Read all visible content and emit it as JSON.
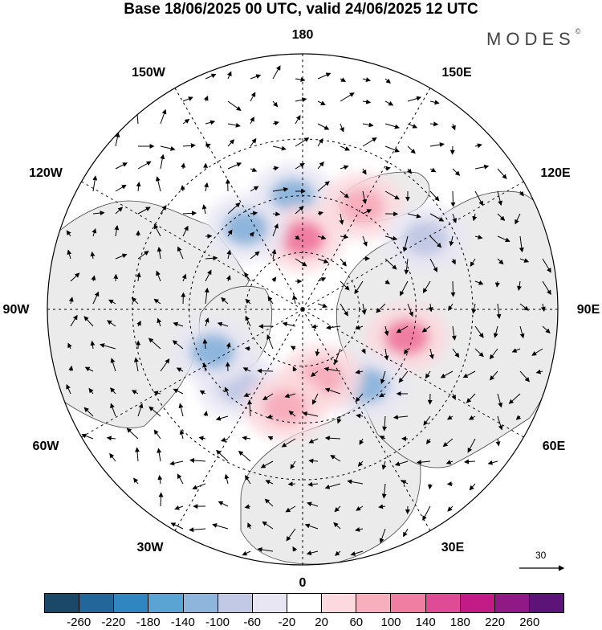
{
  "title": "Base 18/06/2025 00 UTC, valid 24/06/2025 12 UTC",
  "brand": "MODES",
  "brand_mark": "©",
  "map_labels": {
    "lon_180": "180",
    "lon_150w": "150W",
    "lon_150e": "150E",
    "lon_120w": "120W",
    "lon_120e": "120E",
    "lon_90w": "90W",
    "lon_90e": "90E",
    "lon_60w": "60W",
    "lon_60e": "60E",
    "lon_30w": "30W",
    "lon_30e": "30E",
    "lon_0": "0"
  },
  "reference_vector_label": "30",
  "colorbar": {
    "colors": [
      "#1c4868",
      "#23679a",
      "#2f86c0",
      "#59a4d2",
      "#8eb6dc",
      "#c2c9e5",
      "#e8e6f3",
      "#ffffff",
      "#fbd9de",
      "#f7aebd",
      "#f07ea3",
      "#e04b95",
      "#c31b86",
      "#8f1a86",
      "#5c1479"
    ],
    "ticks": [
      "-260",
      "-220",
      "-180",
      "-140",
      "-100",
      "-60",
      "-20",
      "20",
      "60",
      "100",
      "140",
      "180",
      "220",
      "260"
    ]
  },
  "anomaly_features": [
    {
      "sign": "negative",
      "value": -120,
      "lon_deg": 185,
      "colat_deg": 40
    },
    {
      "sign": "positive",
      "value": 100,
      "lon_deg": 180,
      "colat_deg": 25
    },
    {
      "sign": "positive",
      "value": 60,
      "lon_deg": 150,
      "colat_deg": 42
    },
    {
      "sign": "negative",
      "value": -120,
      "lon_deg": 215,
      "colat_deg": 35
    },
    {
      "sign": "negative",
      "value": -100,
      "lon_deg": 120,
      "colat_deg": 50
    },
    {
      "sign": "positive",
      "value": 100,
      "lon_deg": 75,
      "colat_deg": 38
    },
    {
      "sign": "negative",
      "value": -140,
      "lon_deg": 40,
      "colat_deg": 35
    },
    {
      "sign": "positive",
      "value": 60,
      "lon_deg": 15,
      "colat_deg": 25
    },
    {
      "sign": "negative",
      "value": -100,
      "lon_deg": 320,
      "colat_deg": 35
    },
    {
      "sign": "positive",
      "value": 60,
      "lon_deg": 350,
      "colat_deg": 35
    },
    {
      "sign": "negative",
      "value": -140,
      "lon_deg": 295,
      "colat_deg": 35
    }
  ]
}
